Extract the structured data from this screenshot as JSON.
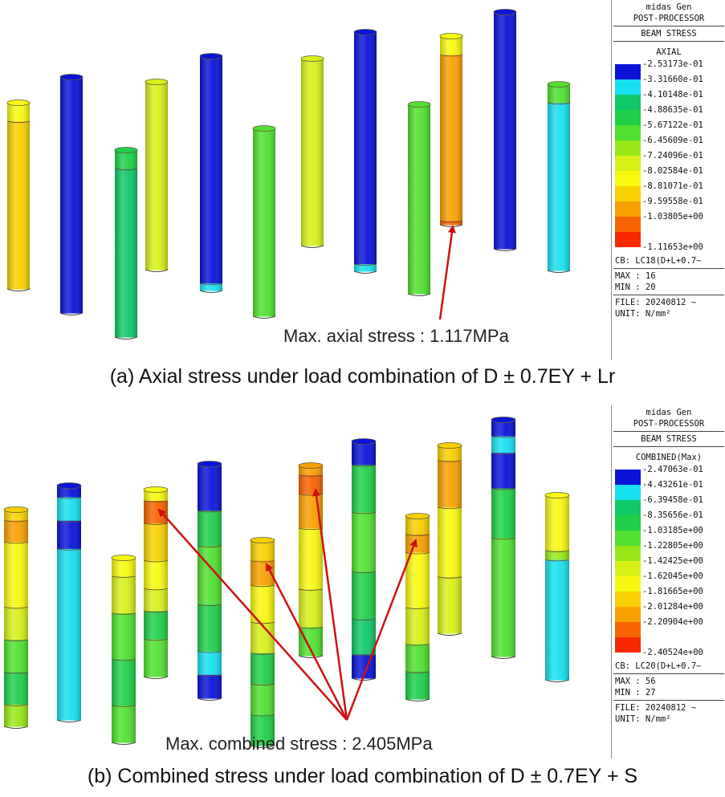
{
  "panel_a": {
    "caption": "(a) Axial stress under load combination of D ± 0.7EY + Lr",
    "annotation": "Max. axial stress : 1.117MPa",
    "legend": {
      "software": "midas Gen",
      "module": "POST-PROCESSOR",
      "result": "BEAM STRESS",
      "component": "AXIAL",
      "values": [
        "-2.53173e-01",
        "-3.31660e-01",
        "-4.10148e-01",
        "-4.88635e-01",
        "-5.67122e-01",
        "-6.45609e-01",
        "-7.24096e-01",
        "-8.02584e-01",
        "-8.81071e-01",
        "-9.59558e-01",
        "-1.03805e+00",
        "-1.11653e+00"
      ],
      "colors": [
        "#0a14d8",
        "#18e0f0",
        "#10c868",
        "#20d048",
        "#50e030",
        "#98e818",
        "#d8f018",
        "#f8f810",
        "#f8d000",
        "#f8a000",
        "#f86400",
        "#f82800"
      ],
      "cb": "CB: LC18(D+L+0.7~",
      "max": "MAX : 16",
      "min": "MIN : 20",
      "file": "FILE: 20240812 ~",
      "unit": "UNIT: N/mm²"
    }
  },
  "panel_b": {
    "caption": "(b) Combined stress under load combination of D ± 0.7EY + S",
    "annotation": "Max. combined stress : 2.405MPa",
    "legend": {
      "software": "midas Gen",
      "module": "POST-PROCESSOR",
      "result": "BEAM STRESS",
      "component": "COMBINED(Max)",
      "values": [
        "-2.47063e-01",
        "-4.43261e-01",
        "-6.39458e-01",
        "-8.35656e-01",
        "-1.03185e+00",
        "-1.22805e+00",
        "-1.42425e+00",
        "-1.62045e+00",
        "-1.81665e+00",
        "-2.01284e+00",
        "-2.20904e+00",
        "-2.40524e+00"
      ],
      "colors": [
        "#0a14d8",
        "#18e0f0",
        "#10c868",
        "#20d048",
        "#50e030",
        "#98e818",
        "#d8f018",
        "#f8f810",
        "#f8d000",
        "#f8a000",
        "#f86400",
        "#f82800"
      ],
      "cb": "CB: LC20(D+L+0.7~",
      "max": "MAX : 56",
      "min": "MIN : 27",
      "file": "FILE: 20240812 ~",
      "unit": "UNIT: N/mm²"
    }
  }
}
